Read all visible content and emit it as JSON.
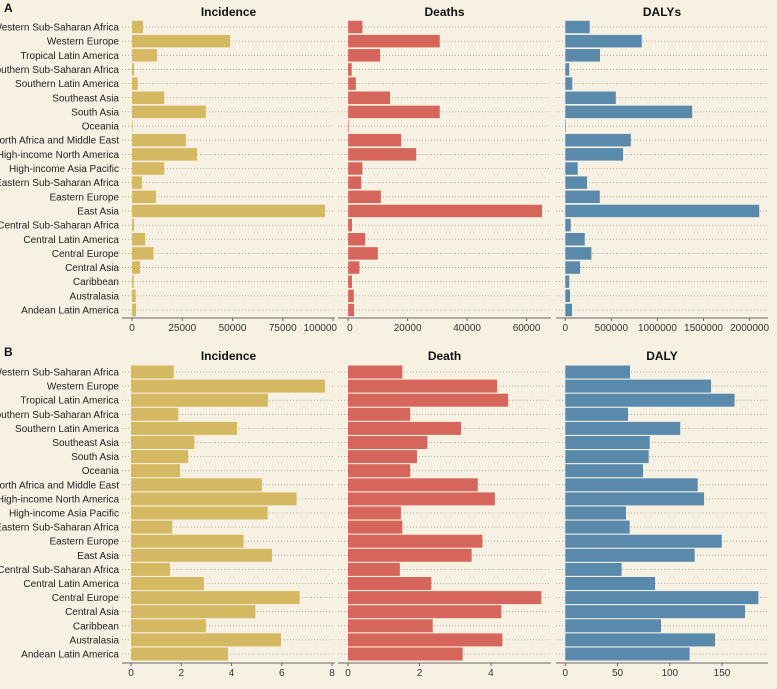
{
  "chart_data": [
    {
      "type": "bar",
      "panel_letter": "A",
      "categories": [
        "Western Sub-Saharan Africa",
        "Western Europe",
        "Tropical Latin America",
        "Southern Sub-Saharan Africa",
        "Southern Latin America",
        "Southeast Asia",
        "South Asia",
        "Oceania",
        "North Africa and Middle East",
        "High-income North America",
        "High-income Asia Pacific",
        "Eastern Sub-Saharan Africa",
        "Eastern Europe",
        "East Asia",
        "Central Sub-Saharan Africa",
        "Central Latin America",
        "Central Europe",
        "Central Asia",
        "Caribbean",
        "Australasia",
        "Andean Latin America"
      ],
      "panels": [
        {
          "title": "Incidence",
          "color": "#d5b862",
          "xlim": [
            -5000,
            101000
          ],
          "ticks": [
            0,
            25000,
            50000,
            75000,
            100000
          ],
          "values": [
            5500,
            48800,
            12400,
            1000,
            2800,
            16000,
            36700,
            100,
            26800,
            32300,
            16000,
            4900,
            11900,
            96000,
            1000,
            6500,
            10700,
            4000,
            800,
            1800,
            2000
          ]
        },
        {
          "title": "Deaths",
          "color": "#d6665b",
          "xlim": [
            -3400,
            68200
          ],
          "ticks": [
            0,
            20000,
            40000,
            60000
          ],
          "values": [
            4800,
            30800,
            10750,
            1200,
            2600,
            14100,
            30800,
            100,
            17800,
            22900,
            4800,
            4400,
            11000,
            65200,
            1300,
            5700,
            10000,
            3800,
            1300,
            1900,
            2000
          ]
        },
        {
          "title": "DALYs",
          "color": "#5a8aab",
          "xlim": [
            -101000,
            2200000
          ],
          "ticks": [
            0,
            500000,
            1000000,
            1500000,
            2000000
          ],
          "values": [
            265000,
            830000,
            377000,
            43000,
            76000,
            548000,
            1377000,
            5000,
            711000,
            627000,
            135000,
            236000,
            374000,
            2105000,
            59000,
            211000,
            283000,
            160000,
            43000,
            51000,
            73000
          ]
        }
      ]
    },
    {
      "type": "bar",
      "panel_letter": "B",
      "categories": [
        "Western Sub-Saharan Africa",
        "Western Europe",
        "Tropical Latin America",
        "Southern Sub-Saharan Africa",
        "Southern Latin America",
        "Southeast Asia",
        "South Asia",
        "Oceania",
        "North Africa and Middle East",
        "High-income North America",
        "High-income Asia Pacific",
        "Eastern Sub-Saharan Africa",
        "Eastern Europe",
        "East Asia",
        "Central Sub-Saharan Africa",
        "Central Latin America",
        "Central Europe",
        "Central Asia",
        "Caribbean",
        "Australasia",
        "Andean Latin America"
      ],
      "panels": [
        {
          "title": "Incidence",
          "color": "#d5b862",
          "xlim": [
            -0.36,
            8.12
          ],
          "ticks": [
            0,
            2,
            4,
            6,
            8
          ],
          "values": [
            1.7,
            7.72,
            5.45,
            1.88,
            4.22,
            2.52,
            2.27,
            1.95,
            5.21,
            6.59,
            5.44,
            1.64,
            4.48,
            5.61,
            1.55,
            2.9,
            6.71,
            4.95,
            2.98,
            5.97,
            3.86
          ]
        },
        {
          "title": "Death",
          "color": "#d6665b",
          "xlim": [
            -0.28,
            5.68
          ],
          "ticks": [
            0,
            2,
            4
          ],
          "values": [
            1.52,
            4.17,
            4.48,
            1.74,
            3.16,
            2.22,
            1.93,
            1.74,
            3.63,
            4.11,
            1.48,
            1.52,
            3.76,
            3.46,
            1.45,
            2.33,
            5.41,
            4.29,
            2.37,
            4.32,
            3.21
          ]
        },
        {
          "title": "DALY",
          "color": "#5a8aab",
          "xlim": [
            -8.9,
            194
          ],
          "ticks": [
            0,
            50,
            100,
            150
          ],
          "values": [
            61.9,
            139.5,
            162,
            60,
            110,
            80.8,
            79.8,
            74.4,
            126.7,
            132.8,
            58.1,
            61.6,
            149.7,
            123.8,
            53.9,
            85.9,
            184.8,
            172,
            91.6,
            143.3,
            119
          ]
        }
      ]
    }
  ]
}
